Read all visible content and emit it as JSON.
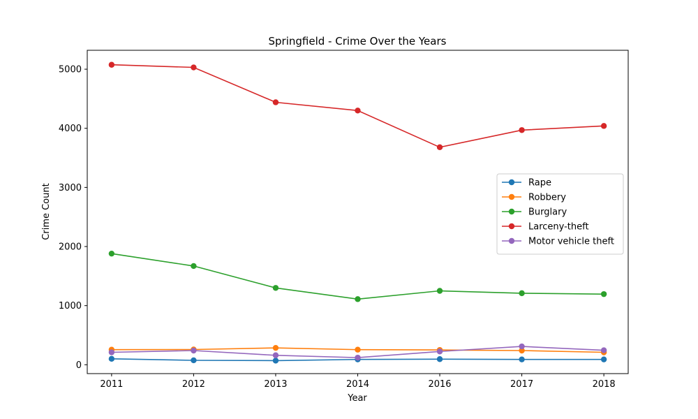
{
  "chart_data": {
    "type": "line",
    "title": "Springfield - Crime Over the Years",
    "xlabel": "Year",
    "ylabel": "Crime Count",
    "categories": [
      "2011",
      "2012",
      "2013",
      "2014",
      "2016",
      "2017",
      "2018"
    ],
    "ylim": [
      -150,
      5320
    ],
    "yticks": [
      0,
      1000,
      2000,
      3000,
      4000,
      5000
    ],
    "grid": false,
    "legend_position": "center-right",
    "series": [
      {
        "name": "Rape",
        "color": "#1f77b4",
        "values": [
          100,
          75,
          70,
          90,
          95,
          90,
          90
        ]
      },
      {
        "name": "Robbery",
        "color": "#ff7f0e",
        "values": [
          255,
          258,
          285,
          255,
          250,
          240,
          210
        ]
      },
      {
        "name": "Burglary",
        "color": "#2ca02c",
        "values": [
          1880,
          1670,
          1300,
          1110,
          1250,
          1210,
          1195
        ]
      },
      {
        "name": "Larceny-theft",
        "color": "#d62728",
        "values": [
          5075,
          5030,
          4440,
          4300,
          3680,
          3970,
          4040
        ]
      },
      {
        "name": "Motor vehicle theft",
        "color": "#9467bd",
        "values": [
          210,
          240,
          160,
          120,
          225,
          310,
          245
        ]
      }
    ]
  }
}
